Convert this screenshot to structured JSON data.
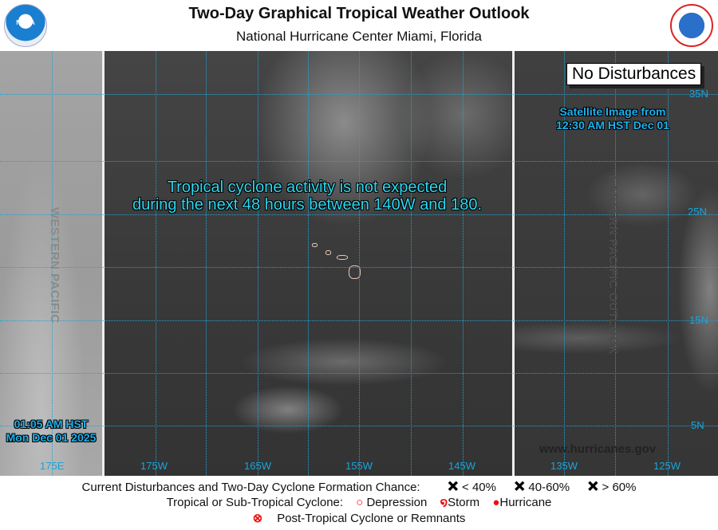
{
  "header": {
    "title": "Two-Day Graphical Tropical Weather Outlook",
    "subtitle": "National Hurricane Center  Miami, Florida",
    "noaa_logo": "NOAA",
    "nws_logo": "NATIONAL WEATHER SERVICE"
  },
  "map": {
    "status_box": "No Disturbances",
    "message_line1": "Tropical cyclone activity is not expected",
    "message_line2": "during the next 48 hours between 140W and 180.",
    "satellite_line1": "Satellite Image from",
    "satellite_line2": "12:30 AM HST Dec 01",
    "issued_time": "01:05 AM HST",
    "issued_date": "Mon Dec 01 2025",
    "western_label": "WESTERN PACIFIC",
    "eastern_label": "EASTERN PACIFIC OUTLOOK",
    "website": "www.hurricanes.gov",
    "lon_labels": [
      "175E",
      "175W",
      "165W",
      "155W",
      "145W",
      "135W",
      "125W"
    ],
    "lat_labels": [
      "35N",
      "25N",
      "15N",
      "5N"
    ]
  },
  "legend": {
    "row1_label": "Current Disturbances and Two-Day Cyclone Formation Chance:",
    "low": "< 40%",
    "medium": "40-60%",
    "high": "> 60%",
    "row2_label": "Tropical or Sub-Tropical Cyclone:",
    "depression": "Depression",
    "storm": "Storm",
    "hurricane": "Hurricane",
    "post_tropical": "Post-Tropical Cyclone or Remnants",
    "colors": {
      "low": "#ffff00",
      "medium": "#ff9900",
      "high": "#ee0000",
      "cyclone": "#ee1111"
    }
  }
}
